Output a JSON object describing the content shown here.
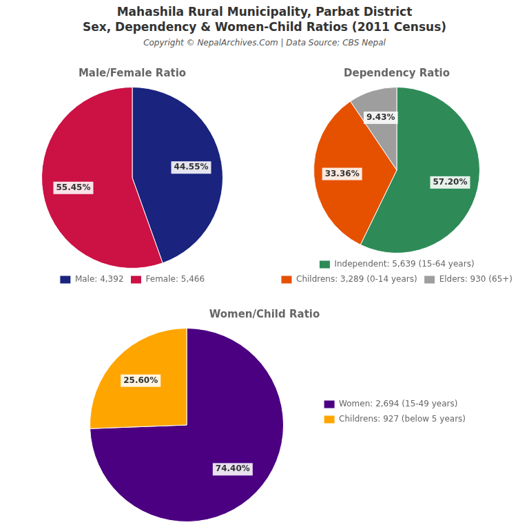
{
  "title": "Mahashila Rural Municipality, Parbat District",
  "subtitle": "Sex, Dependency & Women-Child Ratios (2011 Census)",
  "annotations": [
    "Copyright © NepalArchives.Com | Data Source: CBS Nepal"
  ],
  "chart_data": [
    {
      "type": "pie",
      "title": "Male/Female Ratio",
      "categories": [
        "Male: 4,392",
        "Female: 5,466"
      ],
      "values": [
        44.55,
        55.45
      ],
      "value_labels": [
        "44.55%",
        "55.45%"
      ],
      "colors": [
        "#1a237e",
        "#cc1144"
      ],
      "data_labels": true,
      "legend": "bottom"
    },
    {
      "type": "pie",
      "title": "Dependency Ratio",
      "categories": [
        "Independent: 5,639 (15-64 years)",
        "Childrens: 3,289 (0-14 years)",
        "Elders: 930 (65+)"
      ],
      "values": [
        57.2,
        33.36,
        9.43
      ],
      "value_labels": [
        "57.20%",
        "33.36%",
        "9.43%"
      ],
      "colors": [
        "#2e8b57",
        "#e65100",
        "#9e9e9e"
      ],
      "data_labels": true,
      "legend": "bottom"
    },
    {
      "type": "pie",
      "title": "Women/Child Ratio",
      "categories": [
        "Women: 2,694 (15-49 years)",
        "Childrens: 927 (below 5 years)"
      ],
      "values": [
        74.4,
        25.6
      ],
      "value_labels": [
        "74.40%",
        "25.60%"
      ],
      "colors": [
        "#4b0082",
        "#ffa500"
      ],
      "data_labels": true,
      "legend": "right"
    }
  ]
}
